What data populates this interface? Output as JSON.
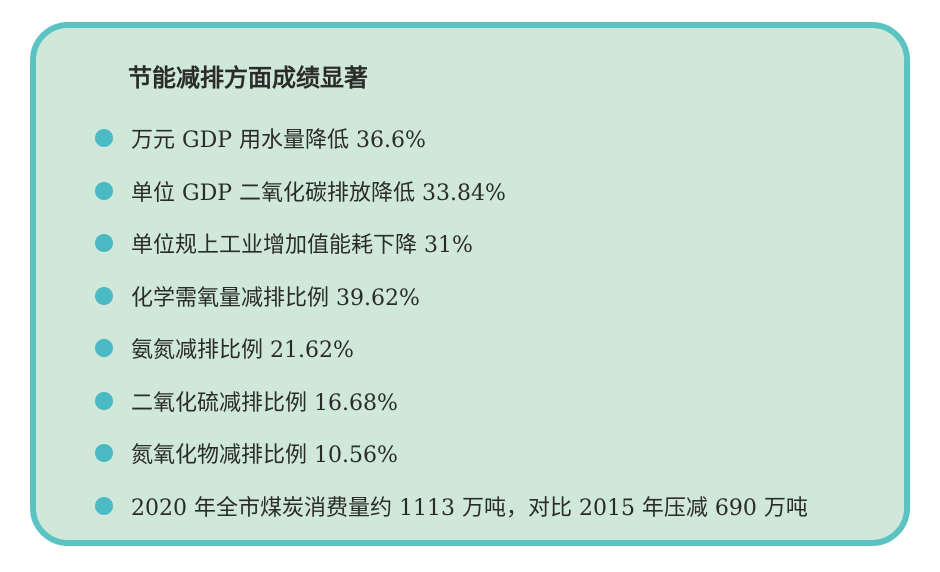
{
  "heading": "节能减排方面成绩显著",
  "colors": {
    "card_background": "#cfe8d9",
    "card_border": "#5cc3c3",
    "bullet": "#4cbac4",
    "text": "#2b2b2b"
  },
  "items": [
    "万元 GDP 用水量降低 36.6%",
    "单位 GDP 二氧化碳排放降低 33.84%",
    "单位规上工业增加值能耗下降 31%",
    "化学需氧量减排比例 39.62%",
    "氨氮减排比例 21.62%",
    "二氧化硫减排比例 16.68%",
    "氮氧化物减排比例 10.56%",
    "2020 年全市煤炭消费量约 1113 万吨，对比 2015 年压减 690 万吨"
  ]
}
